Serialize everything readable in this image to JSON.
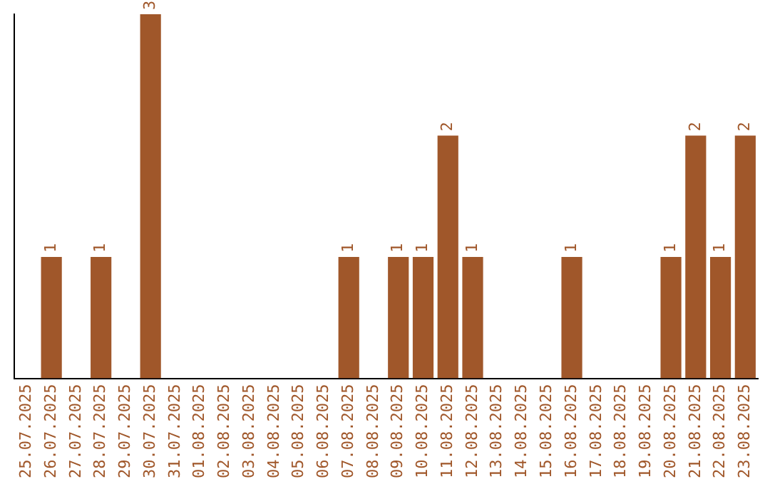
{
  "chart_data": {
    "type": "bar",
    "categories": [
      "25.07.2025",
      "26.07.2025",
      "27.07.2025",
      "28.07.2025",
      "29.07.2025",
      "30.07.2025",
      "31.07.2025",
      "01.08.2025",
      "02.08.2025",
      "03.08.2025",
      "04.08.2025",
      "05.08.2025",
      "06.08.2025",
      "07.08.2025",
      "08.08.2025",
      "09.08.2025",
      "10.08.2025",
      "11.08.2025",
      "12.08.2025",
      "13.08.2025",
      "14.08.2025",
      "15.08.2025",
      "16.08.2025",
      "17.08.2025",
      "18.08.2025",
      "19.08.2025",
      "20.08.2025",
      "21.08.2025",
      "22.08.2025",
      "23.08.2025"
    ],
    "values": [
      0,
      1,
      0,
      1,
      0,
      3,
      0,
      0,
      0,
      0,
      0,
      0,
      0,
      1,
      0,
      1,
      1,
      2,
      1,
      0,
      0,
      0,
      1,
      0,
      0,
      0,
      1,
      2,
      1,
      2
    ],
    "value_labels": [
      null,
      "1",
      null,
      "1",
      null,
      "3",
      null,
      null,
      null,
      null,
      null,
      null,
      null,
      "1",
      null,
      "1",
      "1",
      "2",
      "1",
      null,
      null,
      null,
      "1",
      null,
      null,
      null,
      "1",
      "2",
      "1",
      "2"
    ],
    "color": "#a0572a",
    "tick_labels": "x",
    "grid": false,
    "legend": false
  }
}
